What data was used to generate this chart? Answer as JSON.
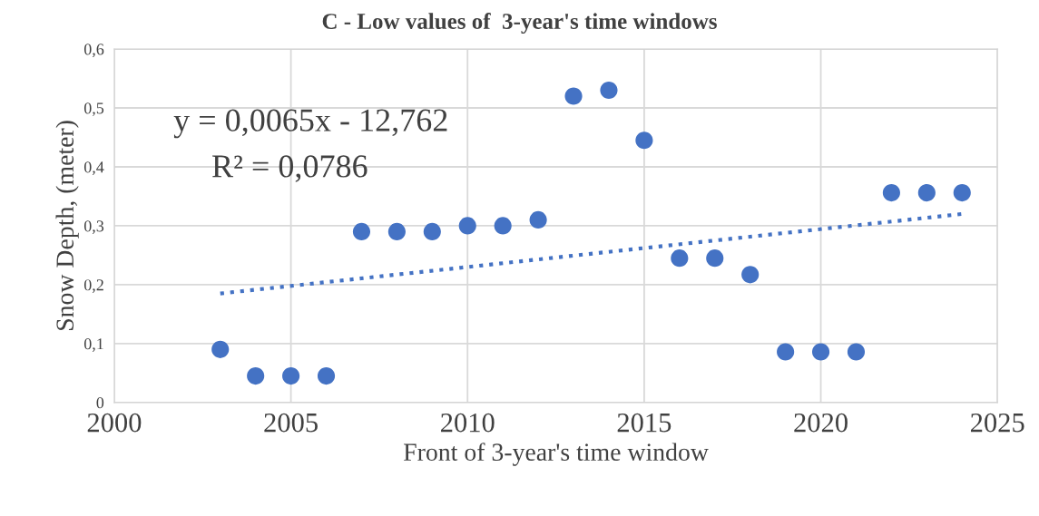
{
  "chart_data": {
    "type": "scatter",
    "title": "C - Low values of  3-year's time windows",
    "xlabel": "Front of 3-year's time window",
    "ylabel": "Snow Depth, (meter)",
    "annotations": [
      "y = 0,0065x - 12,762",
      "R² = 0,0786"
    ],
    "xlim": [
      2000,
      2025
    ],
    "xticks": [
      2000,
      2005,
      2010,
      2015,
      2020,
      2025
    ],
    "ylim": [
      0,
      0.6
    ],
    "yticks": [
      {
        "value": 0,
        "label": "0"
      },
      {
        "value": 0.1,
        "label": "0,1"
      },
      {
        "value": 0.2,
        "label": "0,2"
      },
      {
        "value": 0.3,
        "label": "0,3"
      },
      {
        "value": 0.4,
        "label": "0,4"
      },
      {
        "value": 0.5,
        "label": "0,5"
      },
      {
        "value": 0.6,
        "label": "0,6"
      }
    ],
    "grid": true,
    "legend": false,
    "marker": "circle",
    "x": [
      2003,
      2004,
      2005,
      2006,
      2007,
      2008,
      2009,
      2010,
      2011,
      2012,
      2013,
      2014,
      2015,
      2016,
      2017,
      2018,
      2019,
      2020,
      2021,
      2022,
      2023,
      2024
    ],
    "series": [
      {
        "color": "#4472c4",
        "values": [
          0.09,
          0.045,
          0.045,
          0.045,
          0.29,
          0.29,
          0.29,
          0.3,
          0.3,
          0.31,
          0.52,
          0.53,
          0.445,
          0.245,
          0.245,
          0.217,
          0.086,
          0.086,
          0.086,
          0.356,
          0.356,
          0.356
        ]
      },
      {
        "type": "line",
        "line_style": "dotted",
        "marker": "none",
        "color": "#4472c4",
        "x": [
          2003,
          2024
        ],
        "values": [
          0.185,
          0.32
        ]
      }
    ]
  }
}
